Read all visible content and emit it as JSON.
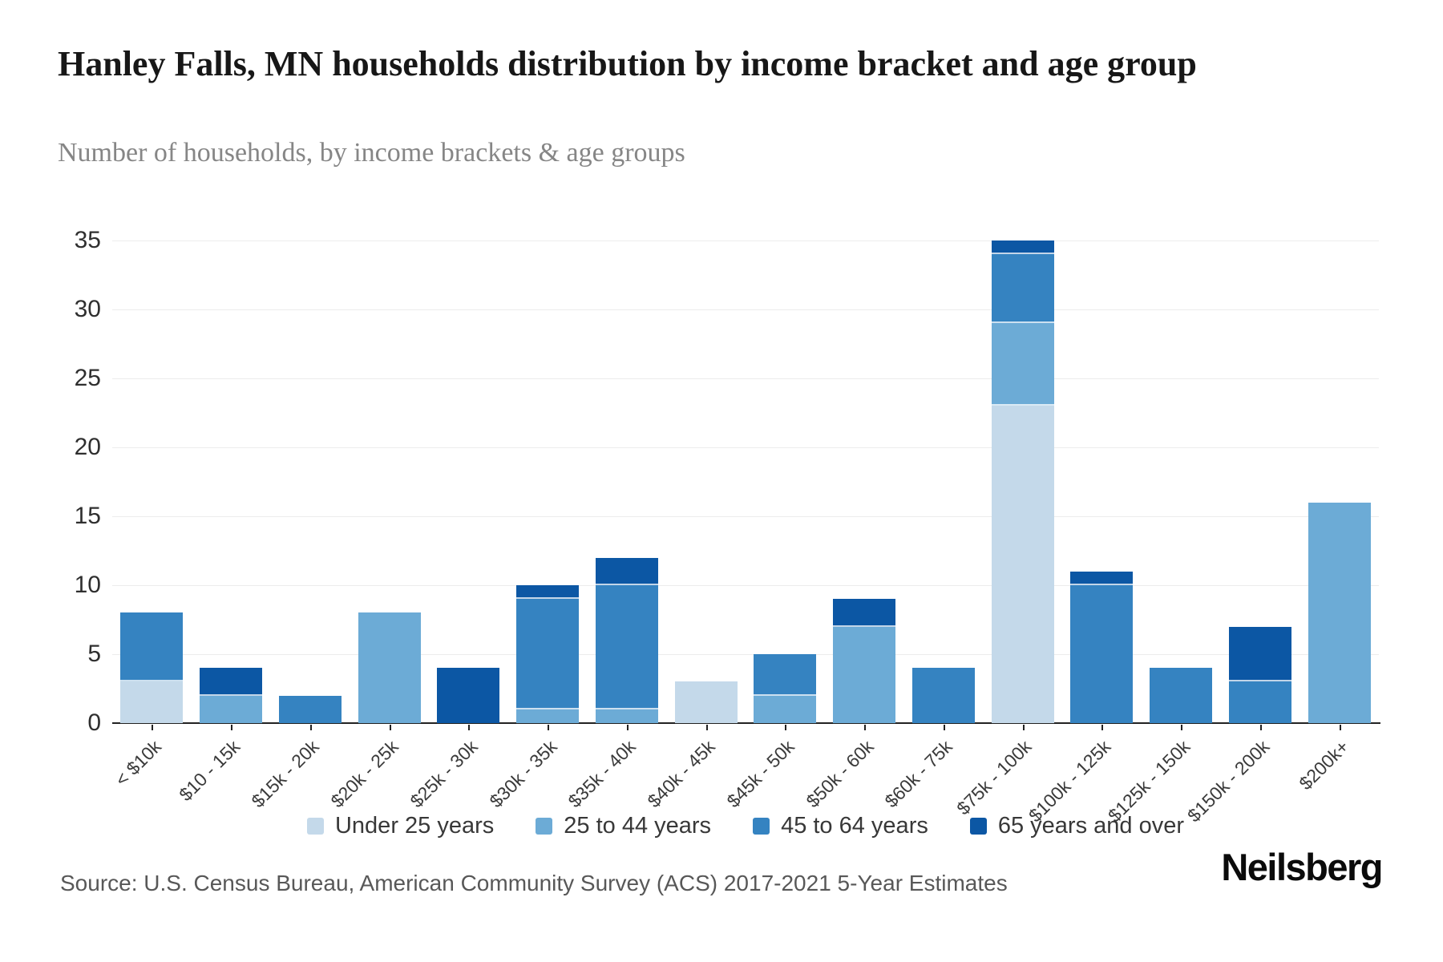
{
  "header": {
    "title": "Hanley Falls, MN households distribution by income bracket and age group",
    "subtitle": "Number of households, by income brackets & age groups"
  },
  "chart_data": {
    "type": "bar",
    "stacked": true,
    "title": "Hanley Falls, MN households distribution by income bracket and age group",
    "subtitle": "Number of households, by income brackets & age groups",
    "xlabel": "",
    "ylabel": "",
    "ylim": [
      0,
      35
    ],
    "yticks": [
      0,
      5,
      10,
      15,
      20,
      25,
      30,
      35
    ],
    "grid": true,
    "legend_position": "bottom",
    "categories": [
      "< $10k",
      "$10 - 15k",
      "$15k - 20k",
      "$20k - 25k",
      "$25k - 30k",
      "$30k - 35k",
      "$35k - 40k",
      "$40k - 45k",
      "$45k - 50k",
      "$50k - 60k",
      "$60k - 75k",
      "$75k - 100k",
      "$100k - 125k",
      "$125k - 150k",
      "$150k - 200k",
      "$200k+"
    ],
    "series": [
      {
        "name": "Under 25 years",
        "color": "#c4d9ea",
        "values": [
          3,
          0,
          0,
          0,
          0,
          0,
          0,
          3,
          0,
          0,
          0,
          23,
          0,
          0,
          0,
          0
        ]
      },
      {
        "name": "25 to 44 years",
        "color": "#6cabd6",
        "values": [
          0,
          2,
          0,
          8,
          0,
          1,
          1,
          0,
          2,
          7,
          0,
          6,
          0,
          0,
          0,
          16
        ]
      },
      {
        "name": "45 to 64 years",
        "color": "#3583c1",
        "values": [
          5,
          0,
          2,
          0,
          0,
          8,
          9,
          0,
          3,
          0,
          4,
          5,
          10,
          4,
          3,
          0
        ]
      },
      {
        "name": "65 years and over",
        "color": "#0c57a4",
        "values": [
          0,
          2,
          0,
          0,
          4,
          1,
          2,
          0,
          0,
          2,
          0,
          1,
          1,
          0,
          4,
          0
        ]
      }
    ],
    "bar_totals": [
      8,
      4,
      2,
      8,
      4,
      10,
      12,
      3,
      5,
      9,
      4,
      35,
      11,
      4,
      7,
      16
    ]
  },
  "footer": {
    "source": "Source: U.S. Census Bureau, American Community Survey (ACS) 2017-2021 5-Year Estimates",
    "brand": "Neilsberg"
  }
}
